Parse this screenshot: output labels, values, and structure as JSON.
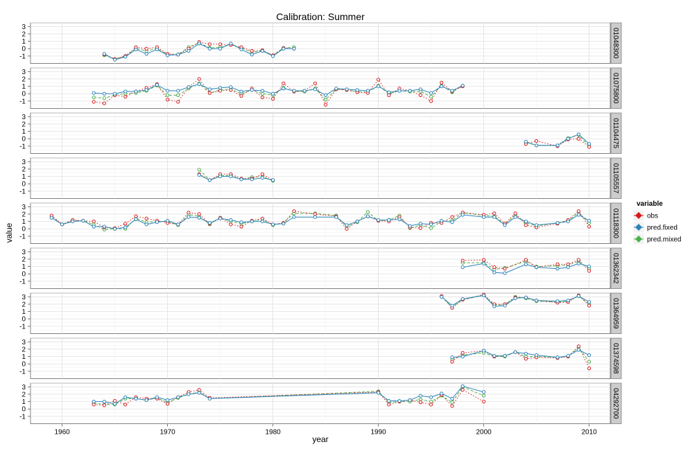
{
  "chart_data": {
    "type": "line",
    "title": "Calibration: Summer",
    "xlabel": "year",
    "ylabel": "value",
    "xlim": [
      1957,
      2012
    ],
    "ylim": [
      -2,
      3.5
    ],
    "x_ticks": [
      1960,
      1970,
      1980,
      1990,
      2000,
      2010
    ],
    "y_ticks": [
      -1,
      0,
      1,
      2,
      3
    ],
    "grid": true,
    "legend": {
      "title": "variable",
      "position": "right",
      "entries": [
        {
          "name": "obs",
          "color": "#d7191c",
          "style": "dotted"
        },
        {
          "name": "pred.fixed",
          "color": "#2b83ba",
          "style": "solid"
        },
        {
          "name": "pred.mixed",
          "color": "#4daf4a",
          "style": "dashed"
        }
      ]
    },
    "panels": [
      {
        "label": "01048300",
        "x": [
          1964,
          1965,
          1966,
          1967,
          1968,
          1969,
          1970,
          1971,
          1972,
          1973,
          1974,
          1975,
          1976,
          1977,
          1978,
          1979,
          1980,
          1981,
          1982
        ],
        "obs": [
          -0.8,
          -1.4,
          -1.0,
          0.2,
          0.0,
          0.2,
          -0.7,
          -0.8,
          0.0,
          0.9,
          0.6,
          0.6,
          0.5,
          0.2,
          -0.3,
          -0.2,
          -0.9,
          0.1,
          0.0
        ],
        "pred_fixed": [
          -0.7,
          -1.5,
          -1.1,
          -0.1,
          -0.7,
          -0.1,
          -0.9,
          -0.8,
          -0.3,
          0.7,
          0.0,
          0.0,
          0.7,
          -0.1,
          -0.8,
          -0.3,
          -1.0,
          0.0,
          0.0
        ],
        "pred_mixed": [
          -0.9,
          -1.4,
          -1.0,
          0.0,
          -0.3,
          0.0,
          -0.8,
          -0.8,
          0.2,
          0.8,
          0.1,
          0.2,
          0.6,
          0.1,
          -0.5,
          -0.3,
          -0.9,
          0.1,
          0.2
        ]
      },
      {
        "label": "01075800",
        "x": [
          1963,
          1964,
          1965,
          1966,
          1967,
          1968,
          1969,
          1970,
          1971,
          1972,
          1973,
          1974,
          1975,
          1976,
          1977,
          1978,
          1979,
          1980,
          1981,
          1982,
          1983,
          1984,
          1985,
          1986,
          1987,
          1988,
          1989,
          1990,
          1991,
          1992,
          1993,
          1994,
          1995,
          1996,
          1997,
          1998
        ],
        "obs": [
          -1.1,
          -1.3,
          -0.2,
          -0.4,
          0.3,
          0.8,
          1.3,
          -0.8,
          -1.1,
          0.9,
          2.0,
          0.1,
          0.4,
          0.5,
          -0.3,
          0.7,
          -0.5,
          -0.7,
          1.4,
          0.3,
          0.4,
          1.4,
          -1.5,
          0.6,
          0.5,
          0.2,
          0.1,
          1.9,
          -0.2,
          0.7,
          0.4,
          -0.2,
          -1.0,
          1.5,
          0.3,
          1.0
        ],
        "pred_fixed": [
          0.1,
          0.0,
          0.0,
          0.3,
          0.3,
          0.5,
          1.2,
          0.4,
          0.4,
          0.9,
          1.3,
          0.6,
          0.8,
          0.9,
          0.3,
          0.5,
          0.4,
          0.0,
          0.7,
          0.4,
          0.4,
          0.6,
          -0.2,
          0.7,
          0.6,
          0.5,
          0.4,
          1.0,
          0.2,
          0.4,
          0.4,
          0.6,
          0.1,
          1.0,
          0.4,
          1.1
        ],
        "pred_mixed": [
          -0.5,
          -0.6,
          -0.2,
          0.0,
          0.1,
          0.4,
          1.1,
          -0.2,
          -0.2,
          0.7,
          1.4,
          0.1,
          0.5,
          0.6,
          0.0,
          0.5,
          0.0,
          -0.2,
          0.8,
          0.3,
          0.3,
          0.7,
          -0.8,
          0.6,
          0.5,
          0.3,
          0.2,
          1.1,
          0.0,
          0.4,
          0.3,
          0.3,
          -0.4,
          1.1,
          0.2,
          1.1
        ]
      },
      {
        "label": "01104475",
        "x": [
          2004,
          2005,
          2007,
          2008,
          2009,
          2010
        ],
        "obs": [
          -0.7,
          -0.3,
          -1.0,
          -0.1,
          0.0,
          -1.1
        ],
        "pred_fixed": [
          -0.4,
          -0.9,
          -0.9,
          0.0,
          0.6,
          -0.7
        ],
        "pred_mixed": [
          -0.5,
          -0.9,
          -0.9,
          0.1,
          0.5,
          -1.0
        ]
      },
      {
        "label": "01105557",
        "x": [
          1973,
          1974,
          1975,
          1976,
          1977,
          1978,
          1979,
          1980
        ],
        "obs": [
          1.3,
          0.5,
          1.3,
          1.3,
          0.7,
          0.7,
          1.3,
          0.5
        ],
        "pred_fixed": [
          1.2,
          0.5,
          1.0,
          1.0,
          0.6,
          0.6,
          0.8,
          0.5
        ],
        "pred_mixed": [
          1.9,
          0.5,
          1.1,
          1.1,
          0.6,
          0.9,
          1.0,
          0.4
        ]
      },
      {
        "label": "01118300",
        "x": [
          1959,
          1960,
          1961,
          1962,
          1963,
          1964,
          1965,
          1966,
          1967,
          1968,
          1969,
          1970,
          1971,
          1972,
          1973,
          1974,
          1975,
          1976,
          1977,
          1978,
          1979,
          1980,
          1981,
          1982,
          1984,
          1986,
          1987,
          1988,
          1989,
          1990,
          1991,
          1992,
          1993,
          1994,
          1995,
          1996,
          1997,
          1998,
          2000,
          2001,
          2002,
          2003,
          2004,
          2005,
          2007,
          2008,
          2009,
          2010
        ],
        "obs": [
          1.8,
          0.6,
          1.2,
          1.1,
          1.0,
          0.2,
          0.1,
          0.7,
          1.7,
          1.4,
          1.1,
          0.8,
          0.6,
          2.2,
          2.0,
          0.7,
          1.5,
          0.6,
          0.3,
          1.1,
          1.4,
          0.6,
          0.8,
          2.4,
          2.0,
          1.7,
          0.0,
          1.0,
          1.7,
          1.1,
          1.0,
          1.6,
          0.2,
          0.1,
          0.8,
          0.8,
          1.6,
          2.2,
          1.9,
          2.1,
          0.7,
          2.1,
          0.5,
          0.2,
          0.7,
          1.2,
          2.4,
          0.3
        ],
        "pred_fixed": [
          1.5,
          0.6,
          1.0,
          1.1,
          0.3,
          0.3,
          0.0,
          0.2,
          1.3,
          0.6,
          0.9,
          1.1,
          0.6,
          1.6,
          1.5,
          0.8,
          1.4,
          1.2,
          0.9,
          1.0,
          1.0,
          0.6,
          0.7,
          1.6,
          1.6,
          1.6,
          0.5,
          1.0,
          1.7,
          1.2,
          1.2,
          1.3,
          0.4,
          0.7,
          0.6,
          1.1,
          0.9,
          1.9,
          1.6,
          1.6,
          0.5,
          1.6,
          1.0,
          0.5,
          0.8,
          1.0,
          1.9,
          1.1
        ],
        "pred_mixed": [
          1.6,
          0.6,
          1.1,
          1.1,
          0.6,
          -0.1,
          0.0,
          0.0,
          1.4,
          0.9,
          1.0,
          1.0,
          0.5,
          1.9,
          1.7,
          0.6,
          1.5,
          1.0,
          0.7,
          1.0,
          1.3,
          0.5,
          0.8,
          2.1,
          2.1,
          1.8,
          0.3,
          0.9,
          2.3,
          1.1,
          1.2,
          1.8,
          0.1,
          0.5,
          0.1,
          1.0,
          1.1,
          2.2,
          1.8,
          1.7,
          0.6,
          1.9,
          0.8,
          0.4,
          0.8,
          1.1,
          2.2,
          0.8
        ]
      },
      {
        "label": "01362342",
        "x": [
          1998,
          2000,
          2001,
          2002,
          2004,
          2005,
          2007,
          2008,
          2009,
          2010
        ],
        "obs": [
          1.8,
          1.9,
          0.9,
          0.7,
          1.9,
          0.9,
          1.3,
          1.3,
          1.9,
          0.4
        ],
        "pred_fixed": [
          0.9,
          1.4,
          0.2,
          0.1,
          1.3,
          0.9,
          0.7,
          0.9,
          1.4,
          1.0
        ],
        "pred_mixed": [
          1.5,
          1.5,
          0.6,
          0.8,
          1.7,
          1.0,
          1.1,
          1.2,
          1.7,
          0.7
        ]
      },
      {
        "label": "01364959",
        "x": [
          1996,
          1997,
          1998,
          2000,
          2001,
          2002,
          2003,
          2004,
          2005,
          2007,
          2008,
          2009,
          2010
        ],
        "obs": [
          3.1,
          1.5,
          2.6,
          3.3,
          2.0,
          2.0,
          2.9,
          2.9,
          2.5,
          2.2,
          2.3,
          3.2,
          1.8
        ],
        "pred_fixed": [
          3.0,
          1.8,
          2.7,
          3.2,
          1.7,
          1.8,
          2.8,
          2.9,
          2.5,
          2.4,
          2.5,
          3.1,
          2.3
        ],
        "pred_mixed": [
          3.0,
          1.6,
          2.6,
          3.2,
          1.9,
          1.9,
          3.0,
          2.8,
          2.4,
          2.3,
          2.4,
          3.1,
          2.0
        ]
      },
      {
        "label": "01374598",
        "x": [
          1997,
          1998,
          2000,
          2001,
          2002,
          2003,
          2004,
          2005,
          2007,
          2008,
          2009,
          2010
        ],
        "obs": [
          0.3,
          1.5,
          1.8,
          1.0,
          1.1,
          1.6,
          0.7,
          0.9,
          0.8,
          1.0,
          2.4,
          -0.6
        ],
        "pred_fixed": [
          0.9,
          1.0,
          1.8,
          1.1,
          1.1,
          1.6,
          1.4,
          1.2,
          0.9,
          1.1,
          1.9,
          1.2
        ],
        "pred_mixed": [
          0.6,
          1.2,
          1.5,
          1.0,
          1.0,
          1.6,
          1.0,
          1.0,
          0.9,
          1.0,
          2.2,
          0.3
        ]
      },
      {
        "label": "04292700",
        "x": [
          1963,
          1964,
          1965,
          1966,
          1967,
          1968,
          1969,
          1970,
          1971,
          1972,
          1973,
          1974,
          1990,
          1991,
          1992,
          1993,
          1994,
          1995,
          1996,
          1997,
          1998,
          2000
        ],
        "obs": [
          0.6,
          0.5,
          1.1,
          0.6,
          1.6,
          1.4,
          1.4,
          0.7,
          1.6,
          2.3,
          2.6,
          1.5,
          2.3,
          0.6,
          1.0,
          1.2,
          0.9,
          0.6,
          1.9,
          0.4,
          2.6,
          1.0
        ],
        "pred_fixed": [
          1.0,
          1.0,
          0.7,
          1.6,
          1.4,
          1.2,
          1.6,
          1.2,
          1.6,
          2.0,
          2.2,
          1.4,
          2.2,
          1.1,
          1.1,
          1.2,
          1.8,
          1.6,
          2.1,
          1.4,
          3.1,
          2.3
        ],
        "pred_mixed": [
          0.8,
          0.6,
          0.6,
          1.4,
          1.4,
          1.2,
          1.5,
          0.9,
          1.5,
          2.0,
          2.3,
          1.4,
          2.4,
          0.9,
          1.0,
          1.0,
          1.3,
          1.0,
          1.8,
          0.9,
          3.0,
          1.8
        ]
      }
    ]
  }
}
